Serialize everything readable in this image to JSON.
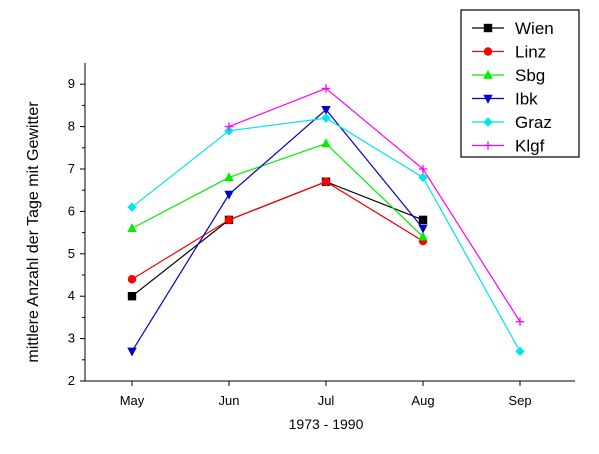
{
  "chart_data": {
    "type": "line",
    "xlabel": "1973 - 1990",
    "ylabel": "mittlere Anzahl der Tage mit Gewitter",
    "categories": [
      "May",
      "Jun",
      "Jul",
      "Aug",
      "Sep"
    ],
    "ylim": [
      2,
      9.5
    ],
    "yticks": [
      2,
      3,
      4,
      5,
      6,
      7,
      8,
      9
    ],
    "grid": false,
    "legend_position": "top-right",
    "series": [
      {
        "name": "Wien",
        "color": "#000000",
        "marker": "square",
        "values": [
          4.0,
          5.8,
          6.7,
          5.8,
          null
        ]
      },
      {
        "name": "Linz",
        "color": "#ff0000",
        "marker": "circle",
        "values": [
          4.4,
          5.8,
          6.7,
          5.3,
          null
        ]
      },
      {
        "name": "Sbg",
        "color": "#00ee00",
        "marker": "triangle-up",
        "values": [
          5.6,
          6.8,
          7.6,
          5.4,
          null
        ]
      },
      {
        "name": "Ibk",
        "color": "#0000cc",
        "marker": "triangle-down",
        "values": [
          2.7,
          6.4,
          8.4,
          5.6,
          null
        ]
      },
      {
        "name": "Graz",
        "color": "#00e5ee",
        "marker": "diamond",
        "values": [
          6.1,
          7.9,
          8.2,
          6.8,
          2.7
        ]
      },
      {
        "name": "Klgf",
        "color": "#ff00ff",
        "marker": "plus",
        "values": [
          null,
          8.0,
          8.9,
          7.0,
          3.4
        ]
      }
    ]
  }
}
